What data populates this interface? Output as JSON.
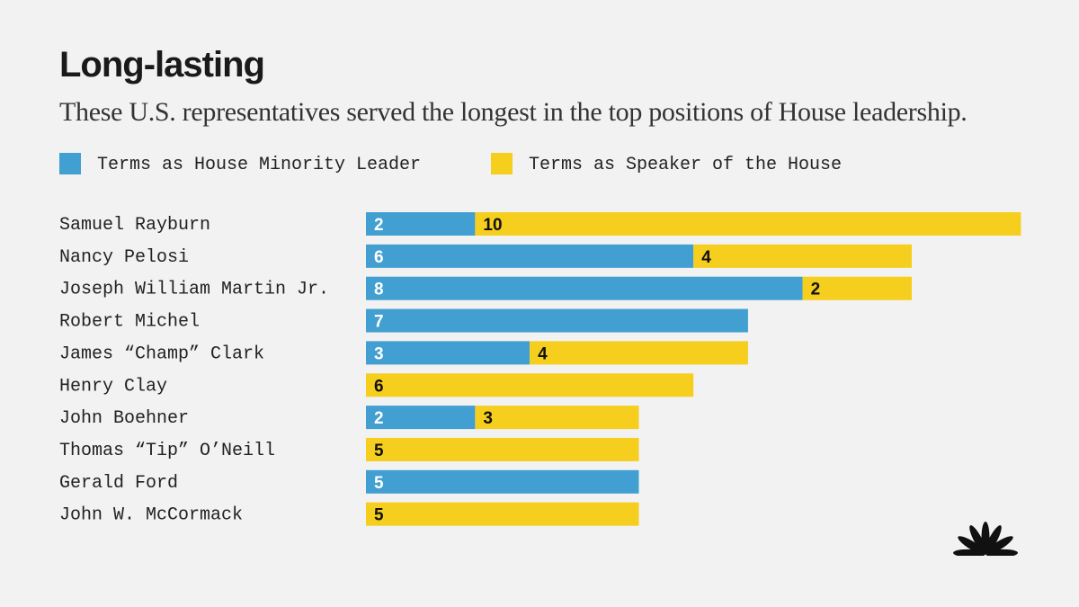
{
  "chart_data": {
    "type": "bar",
    "orientation": "horizontal",
    "stacked": true,
    "title": "Long-lasting",
    "subtitle": "These U.S. representatives served the longest in the top positions of House leadership.",
    "categories": [
      "Samuel Rayburn",
      "Nancy Pelosi",
      "Joseph William Martin Jr.",
      "Robert Michel",
      "James “Champ” Clark",
      "Henry Clay",
      "John Boehner",
      "Thomas “Tip” O’Neill",
      "Gerald Ford",
      "John W. McCormack"
    ],
    "series": [
      {
        "name": "Terms as House Minority Leader",
        "color": "#419fd1",
        "label_color": "#ffffff",
        "values": [
          2,
          6,
          8,
          7,
          3,
          0,
          2,
          0,
          5,
          0
        ]
      },
      {
        "name": "Terms as Speaker of the House",
        "color": "#f5ce1e",
        "label_color": "#111111",
        "values": [
          10,
          4,
          2,
          0,
          4,
          6,
          3,
          5,
          0,
          5
        ]
      }
    ],
    "legend_position": "top-left",
    "grid": false,
    "axes_visible": false
  },
  "logo_icon": "nbc-peacock-icon"
}
